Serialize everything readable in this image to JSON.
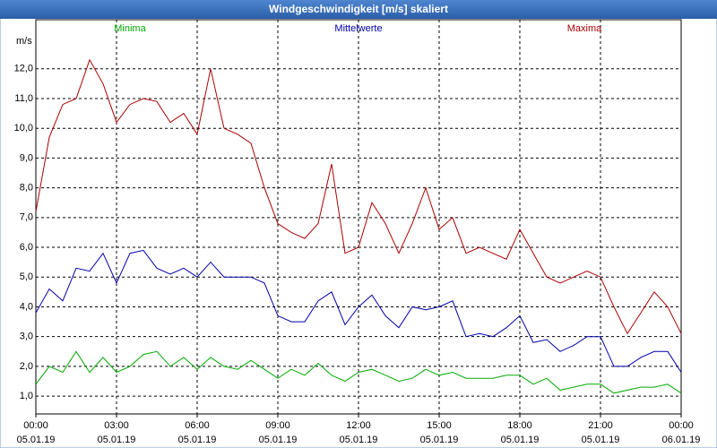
{
  "chart_data": {
    "type": "line",
    "title": "Windgeschwindigkeit [m/s] skaliert",
    "y_label": "m/s",
    "x": [
      0,
      0.5,
      1,
      1.5,
      2,
      2.5,
      3,
      3.5,
      4,
      4.5,
      5,
      5.5,
      6,
      6.5,
      7,
      7.5,
      8,
      8.5,
      9,
      9.5,
      10,
      10.5,
      11,
      11.5,
      12,
      12.5,
      13,
      13.5,
      14,
      14.5,
      15,
      15.5,
      16,
      16.5,
      17,
      17.5,
      18,
      18.5,
      19,
      19.5,
      20,
      20.5,
      21,
      21.5,
      22,
      22.5,
      23,
      23.5,
      24
    ],
    "series": [
      {
        "name": "Minima",
        "color": "#00aa00",
        "values": [
          1.4,
          2.0,
          1.8,
          2.5,
          1.8,
          2.3,
          1.8,
          2.0,
          2.4,
          2.5,
          2.0,
          2.3,
          1.9,
          2.3,
          2.0,
          1.9,
          2.2,
          1.9,
          1.6,
          1.9,
          1.7,
          2.1,
          1.7,
          1.5,
          1.8,
          1.9,
          1.7,
          1.5,
          1.6,
          1.9,
          1.7,
          1.8,
          1.6,
          1.6,
          1.6,
          1.7,
          1.7,
          1.4,
          1.6,
          1.2,
          1.3,
          1.4,
          1.4,
          1.1,
          1.2,
          1.3,
          1.3,
          1.4,
          1.1
        ]
      },
      {
        "name": "Mittelwerte",
        "color": "#0000aa",
        "values": [
          3.8,
          4.6,
          4.2,
          5.3,
          5.2,
          5.8,
          4.8,
          5.8,
          5.9,
          5.3,
          5.1,
          5.3,
          5.0,
          5.5,
          5.0,
          5.0,
          5.0,
          4.8,
          3.7,
          3.5,
          3.5,
          4.2,
          4.5,
          3.4,
          4.0,
          4.4,
          3.7,
          3.3,
          4.0,
          3.9,
          4.0,
          4.2,
          3.0,
          3.1,
          3.0,
          3.3,
          3.7,
          2.8,
          2.9,
          2.5,
          2.7,
          3.0,
          3.0,
          2.0,
          2.0,
          2.3,
          2.5,
          2.5,
          1.8
        ]
      },
      {
        "name": "Maxima",
        "color": "#aa0000",
        "values": [
          7.2,
          9.7,
          10.8,
          11.0,
          12.3,
          11.5,
          10.2,
          10.8,
          11.0,
          10.9,
          10.2,
          10.5,
          9.8,
          12.0,
          10.0,
          9.8,
          9.5,
          8.0,
          6.8,
          6.5,
          6.3,
          6.8,
          8.8,
          5.8,
          6.0,
          7.5,
          6.8,
          5.8,
          6.8,
          8.0,
          6.6,
          7.0,
          5.8,
          6.0,
          5.8,
          5.6,
          6.6,
          5.8,
          5.0,
          4.8,
          5.0,
          5.2,
          5.0,
          4.0,
          3.1,
          3.8,
          4.5,
          4.0,
          3.1
        ]
      }
    ],
    "xlim": [
      0,
      24
    ],
    "xticks": [
      {
        "value": 0,
        "label": "00:00"
      },
      {
        "value": 3,
        "label": "03:00"
      },
      {
        "value": 6,
        "label": "06:00"
      },
      {
        "value": 9,
        "label": "09:00"
      },
      {
        "value": 12,
        "label": "12:00"
      },
      {
        "value": 15,
        "label": "15:00"
      },
      {
        "value": 18,
        "label": "18:00"
      },
      {
        "value": 21,
        "label": "21:00"
      },
      {
        "value": 24,
        "label": "00:00"
      }
    ],
    "xtick_dates": [
      "05.01.19",
      "05.01.19",
      "05.01.19",
      "05.01.19",
      "05.01.19",
      "05.01.19",
      "05.01.19",
      "05.01.19",
      "06.01.19"
    ],
    "ylim": [
      0.4,
      13.65
    ],
    "yticks": [
      {
        "value": 1,
        "label": "1,0"
      },
      {
        "value": 2,
        "label": "2,0"
      },
      {
        "value": 3,
        "label": "3,0"
      },
      {
        "value": 4,
        "label": "4,0"
      },
      {
        "value": 5,
        "label": "5,0"
      },
      {
        "value": 6,
        "label": "6,0"
      },
      {
        "value": 7,
        "label": "7,0"
      },
      {
        "value": 8,
        "label": "8,0"
      },
      {
        "value": 9,
        "label": "9,0"
      },
      {
        "value": 10,
        "label": "10,0"
      },
      {
        "value": 11,
        "label": "11,0"
      },
      {
        "value": 12,
        "label": "12,0"
      }
    ],
    "grid": true
  }
}
